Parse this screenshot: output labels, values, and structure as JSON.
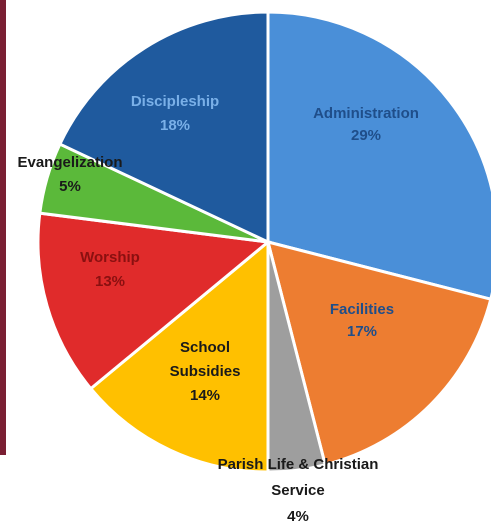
{
  "chart_data": {
    "type": "pie",
    "title": "",
    "slices": [
      {
        "label": "Administration",
        "percent_label": "29%",
        "value": 29,
        "color": "#4a8fd8",
        "text_color": "#1f4e8a"
      },
      {
        "label": "Facilities",
        "percent_label": "17%",
        "value": 17,
        "color": "#ed7d31",
        "text_color": "#1f4e8a"
      },
      {
        "label": "Parish Life & Christian Service",
        "label_lines": [
          "Parish Life & Christian",
          "Service"
        ],
        "percent_label": "4%",
        "value": 4,
        "color": "#9e9e9e",
        "text_color": "#1a1a1a"
      },
      {
        "label": "School Subsidies",
        "label_lines": [
          "School",
          "Subsidies"
        ],
        "percent_label": "14%",
        "value": 14,
        "color": "#ffc000",
        "text_color": "#1a1a1a"
      },
      {
        "label": "Worship",
        "percent_label": "13%",
        "value": 13,
        "color": "#e02b2b",
        "text_color": "#8a1010"
      },
      {
        "label": "Evangelization",
        "percent_label": "5%",
        "value": 5,
        "color": "#5bb93a",
        "text_color": "#1a1a1a"
      },
      {
        "label": "Discipleship",
        "percent_label": "18%",
        "value": 18,
        "color": "#1f5a9e",
        "text_color": "#7ab0e8"
      }
    ]
  }
}
